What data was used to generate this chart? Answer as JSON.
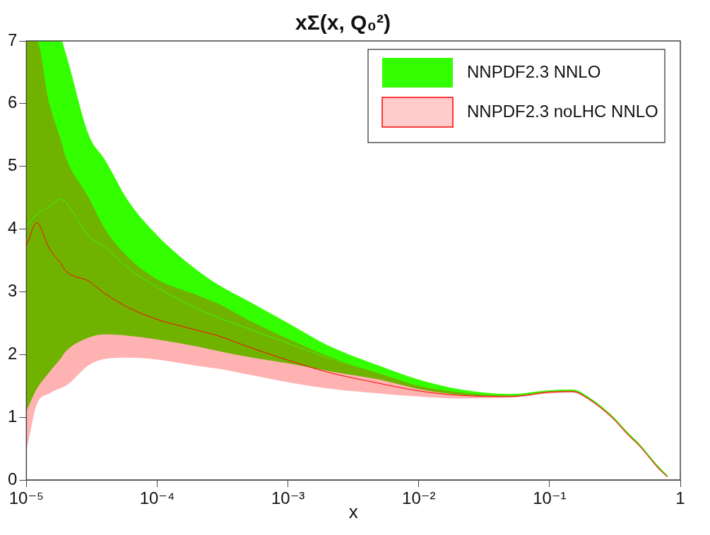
{
  "chart_data": {
    "type": "line",
    "title": "xΣ(x, Q₀²)",
    "xlabel": "x",
    "log": "x",
    "x": [
      1e-05,
      1.2e-05,
      1.5e-05,
      1.85e-05,
      2e-05,
      3e-05,
      4e-05,
      6e-05,
      0.0001,
      0.0002,
      0.0003,
      0.0005,
      0.001,
      0.002,
      0.005,
      0.01,
      0.02,
      0.05,
      0.1,
      0.15,
      0.2,
      0.3,
      0.4,
      0.5,
      0.6,
      0.7,
      0.8
    ],
    "xlim": [
      1e-05,
      1
    ],
    "xticks": [
      {
        "value": 1e-05,
        "label": "10⁻⁵"
      },
      {
        "value": 0.0001,
        "label": "10⁻⁴"
      },
      {
        "value": 0.001,
        "label": "10⁻³"
      },
      {
        "value": 0.01,
        "label": "10⁻²"
      },
      {
        "value": 0.1,
        "label": "10⁻¹"
      },
      1
    ],
    "ylim": [
      0,
      7
    ],
    "yticks": [
      0,
      1,
      2,
      3,
      4,
      5,
      6,
      7
    ],
    "legend": "top right",
    "series": [
      {
        "name": "NNPDF2.3 NNLO",
        "color": "#33ff00",
        "values": [
          4.05,
          4.23,
          4.36,
          4.48,
          4.43,
          3.89,
          3.71,
          3.38,
          3.07,
          2.74,
          2.58,
          2.41,
          2.18,
          1.95,
          1.71,
          1.53,
          1.41,
          1.35,
          1.42,
          1.43,
          1.31,
          1.02,
          0.74,
          0.54,
          0.34,
          0.18,
          0.06
        ],
        "lower": [
          1.1,
          1.45,
          1.72,
          1.95,
          2.05,
          2.27,
          2.32,
          2.3,
          2.24,
          2.13,
          2.05,
          1.96,
          1.86,
          1.74,
          1.6,
          1.45,
          1.36,
          1.33,
          1.4,
          1.41,
          1.29,
          1.0,
          0.72,
          0.52,
          0.32,
          0.16,
          0.05
        ],
        "upper": [
          7.0,
          7.0,
          7.0,
          7.0,
          6.8,
          5.5,
          5.1,
          4.45,
          3.9,
          3.35,
          3.1,
          2.85,
          2.5,
          2.15,
          1.82,
          1.6,
          1.45,
          1.37,
          1.43,
          1.44,
          1.32,
          1.03,
          0.75,
          0.55,
          0.35,
          0.19,
          0.07
        ]
      },
      {
        "name": "NNPDF2.3 noLHC NNLO",
        "color": "#ff0000",
        "values": [
          3.73,
          4.1,
          3.69,
          3.44,
          3.33,
          3.17,
          2.97,
          2.75,
          2.56,
          2.39,
          2.29,
          2.12,
          1.91,
          1.72,
          1.54,
          1.42,
          1.35,
          1.33,
          1.4,
          1.41,
          1.29,
          1.0,
          0.72,
          0.52,
          0.32,
          0.16,
          0.05
        ],
        "lower": [
          0.46,
          1.2,
          1.38,
          1.47,
          1.5,
          1.83,
          1.93,
          1.95,
          1.92,
          1.82,
          1.77,
          1.68,
          1.56,
          1.46,
          1.38,
          1.33,
          1.3,
          1.31,
          1.38,
          1.39,
          1.27,
          0.98,
          0.7,
          0.5,
          0.3,
          0.14,
          0.03
        ],
        "upper": [
          7.0,
          7.0,
          6.0,
          5.4,
          5.15,
          4.5,
          4.0,
          3.55,
          3.2,
          2.95,
          2.8,
          2.55,
          2.25,
          1.98,
          1.7,
          1.5,
          1.4,
          1.35,
          1.42,
          1.43,
          1.31,
          1.02,
          0.74,
          0.54,
          0.34,
          0.18,
          0.06
        ]
      }
    ]
  }
}
